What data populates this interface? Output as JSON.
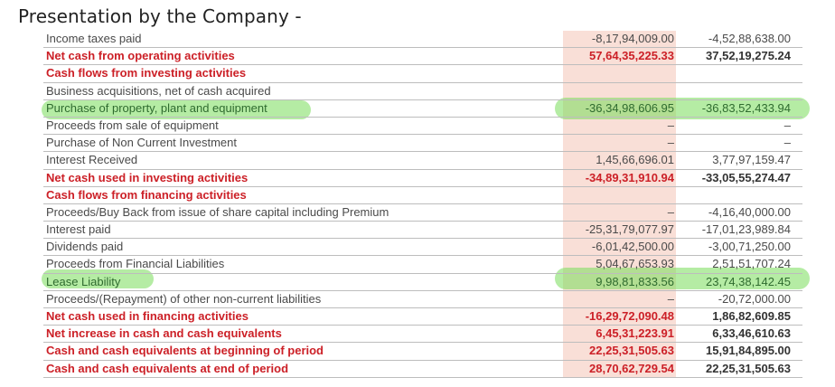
{
  "heading": "Presentation by the Company -",
  "rows": [
    {
      "label": "Income taxes paid",
      "v1": "-8,17,94,009.00",
      "v2": "-4,52,88,638.00",
      "style": "normal"
    },
    {
      "label": "Net cash from operating activities",
      "v1": "57,64,35,225.33",
      "v2": "37,52,19,275.24",
      "style": "bold"
    },
    {
      "label": "Cash flows from investing activities",
      "v1": "",
      "v2": "",
      "style": "section"
    },
    {
      "label": "Business acquisitions, net of cash acquired",
      "v1": "",
      "v2": "",
      "style": "normal"
    },
    {
      "label": "Purchase of property, plant and equipment",
      "v1": "-36,34,98,606.95",
      "v2": "-36,83,52,433.94",
      "style": "highlight"
    },
    {
      "label": "Proceeds from sale of equipment",
      "v1": "–",
      "v2": "–",
      "style": "normal"
    },
    {
      "label": "Purchase of Non Current Investment",
      "v1": "–",
      "v2": "–",
      "style": "normal"
    },
    {
      "label": "Interest Received",
      "v1": "1,45,66,696.01",
      "v2": "3,77,97,159.47",
      "style": "normal"
    },
    {
      "label": "Net cash used in investing activities",
      "v1": "-34,89,31,910.94",
      "v2": "-33,05,55,274.47",
      "style": "bold"
    },
    {
      "label": "Cash flows from financing activities",
      "v1": "",
      "v2": "",
      "style": "section"
    },
    {
      "label": "Proceeds/Buy Back from issue of share capital including Premium",
      "v1": "–",
      "v2": "-4,16,40,000.00",
      "style": "normal"
    },
    {
      "label": "Interest paid",
      "v1": "-25,31,79,077.97",
      "v2": "-17,01,23,989.84",
      "style": "normal"
    },
    {
      "label": "Dividends paid",
      "v1": "-6,01,42,500.00",
      "v2": "-3,00,71,250.00",
      "style": "normal"
    },
    {
      "label": "Proceeds from Financial Liabilities",
      "v1": "5,04,67,653.93",
      "v2": "2,51,51,707.24",
      "style": "normal"
    },
    {
      "label": "Lease Liability",
      "v1": "9,98,81,833.56",
      "v2": "23,74,38,142.45",
      "style": "highlight"
    },
    {
      "label": "Proceeds/(Repayment) of other non-current liabilities",
      "v1": "–",
      "v2": "-20,72,000.00",
      "style": "normal"
    },
    {
      "label": "Net cash used in financing activities",
      "v1": "-16,29,72,090.48",
      "v2": "1,86,82,609.85",
      "style": "bold"
    },
    {
      "label": "Net increase in cash and cash equivalents",
      "v1": "6,45,31,223.91",
      "v2": "6,33,46,610.63",
      "style": "bold"
    },
    {
      "label": "Cash and cash equivalents at beginning of period",
      "v1": "22,25,31,505.63",
      "v2": "15,91,84,895.00",
      "style": "bold"
    },
    {
      "label": "Cash and cash equivalents at end of period",
      "v1": "28,70,62,729.54",
      "v2": "22,25,31,505.63",
      "style": "bold"
    }
  ],
  "colors": {
    "accent_red": "#cc2027",
    "column_shade": "#f9dfd7",
    "highlight_marker": "#78dc5a"
  }
}
